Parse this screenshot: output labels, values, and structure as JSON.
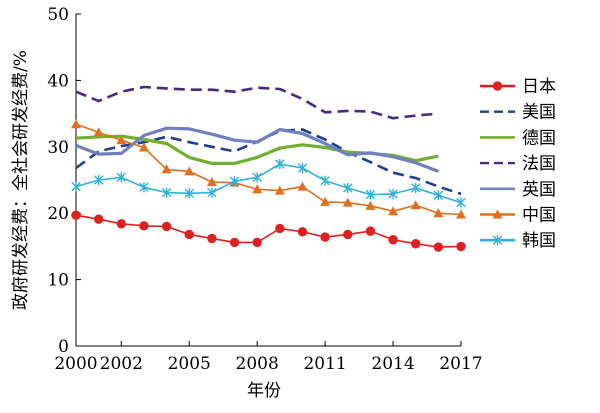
{
  "chart_data": {
    "type": "line",
    "title": "",
    "xlabel": "年份",
    "ylabel": "政府研发经费：全社会研发经费/%",
    "xlim": [
      2000,
      2017
    ],
    "ylim": [
      0,
      50
    ],
    "x_ticks": [
      2000,
      2002,
      2005,
      2008,
      2011,
      2014,
      2017
    ],
    "y_ticks": [
      0,
      10,
      20,
      30,
      40,
      50
    ],
    "grid": false,
    "legend_position": "right",
    "x": [
      2000,
      2001,
      2002,
      2003,
      2004,
      2005,
      2006,
      2007,
      2008,
      2009,
      2010,
      2011,
      2012,
      2013,
      2014,
      2015,
      2016,
      2017
    ],
    "series": [
      {
        "name": "日本",
        "color": "#e02020",
        "style": "solid",
        "marker": "circle",
        "values": [
          19.7,
          19.1,
          18.4,
          18.1,
          18.0,
          16.8,
          16.2,
          15.6,
          15.6,
          17.7,
          17.2,
          16.4,
          16.8,
          17.3,
          16.0,
          15.4,
          14.9,
          15.0
        ]
      },
      {
        "name": "美国",
        "color": "#1f3f8f",
        "style": "dashed",
        "marker": "none",
        "values": [
          26.8,
          29.3,
          30.1,
          30.7,
          31.5,
          30.7,
          30.0,
          29.3,
          30.8,
          32.4,
          32.6,
          31.1,
          29.2,
          27.7,
          26.1,
          25.3,
          24.0,
          22.9
        ]
      },
      {
        "name": "德国",
        "color": "#70b030",
        "style": "solid",
        "marker": "none",
        "values": [
          31.3,
          31.5,
          31.6,
          31.1,
          30.5,
          28.4,
          27.5,
          27.5,
          28.4,
          29.8,
          30.3,
          29.9,
          29.2,
          29.0,
          28.7,
          27.9,
          28.6,
          null
        ]
      },
      {
        "name": "法国",
        "color": "#4a2a80",
        "style": "dashed",
        "marker": "none",
        "values": [
          38.3,
          36.9,
          38.3,
          39.0,
          38.8,
          38.6,
          38.6,
          38.3,
          38.9,
          38.7,
          37.2,
          35.2,
          35.4,
          35.3,
          34.3,
          34.7,
          35.0,
          null
        ]
      },
      {
        "name": "英国",
        "color": "#7080c0",
        "style": "solid",
        "marker": "none",
        "values": [
          30.2,
          28.9,
          29.0,
          31.7,
          32.8,
          32.7,
          31.9,
          31.0,
          30.7,
          32.6,
          32.0,
          30.5,
          28.8,
          29.1,
          28.5,
          27.6,
          26.3,
          null
        ]
      },
      {
        "name": "中国",
        "color": "#e07020",
        "style": "solid",
        "marker": "triangle",
        "values": [
          33.4,
          32.2,
          31.0,
          29.9,
          26.6,
          26.3,
          24.7,
          24.6,
          23.6,
          23.4,
          24.0,
          21.7,
          21.6,
          21.1,
          20.3,
          21.2,
          20.0,
          19.8
        ]
      },
      {
        "name": "韩国",
        "color": "#30b0e0",
        "style": "solid",
        "marker": "star",
        "values": [
          24.0,
          25.0,
          25.4,
          23.9,
          23.1,
          23.0,
          23.1,
          24.8,
          25.4,
          27.4,
          26.8,
          24.9,
          23.8,
          22.8,
          22.9,
          23.8,
          22.7,
          21.6
        ]
      }
    ]
  }
}
